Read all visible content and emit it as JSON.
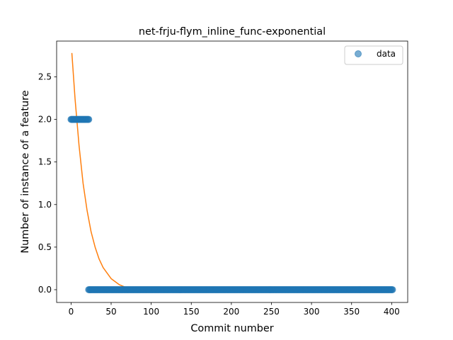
{
  "chart_data": {
    "type": "scatter",
    "title": "net-frju-flym_inline_func-exponential",
    "xlabel": "Commit number",
    "ylabel": "Number of instance of a feature",
    "xlim": [
      -18,
      420
    ],
    "ylim": [
      -0.15,
      2.92
    ],
    "xticks": [
      0,
      50,
      100,
      150,
      200,
      250,
      300,
      350,
      400
    ],
    "xtick_labels": [
      "0",
      "50",
      "100",
      "150",
      "200",
      "250",
      "300",
      "350",
      "400"
    ],
    "yticks": [
      0.0,
      0.5,
      1.0,
      1.5,
      2.0,
      2.5
    ],
    "ytick_labels": [
      "0.0",
      "0.5",
      "1.0",
      "1.5",
      "2.0",
      "2.5"
    ],
    "grid": false,
    "legend": {
      "position": "top-right",
      "entries": [
        "data"
      ]
    },
    "colors": {
      "data": "#1f77b4",
      "fit": "#ff7f0e"
    },
    "series": [
      {
        "name": "data",
        "kind": "scatter",
        "segments": [
          {
            "x_from": 0,
            "x_to": 22,
            "y": 2
          },
          {
            "x_from": 22,
            "x_to": 401,
            "y": 0
          }
        ]
      },
      {
        "kind": "line",
        "x": [
          1,
          5,
          10,
          15,
          20,
          25,
          30,
          35,
          40,
          50,
          60,
          70,
          80,
          90,
          100,
          120,
          150,
          200,
          300,
          401
        ],
        "y": [
          2.78,
          2.24,
          1.69,
          1.25,
          0.93,
          0.68,
          0.5,
          0.36,
          0.26,
          0.13,
          0.06,
          0.02,
          0.0,
          -0.01,
          -0.015,
          -0.02,
          -0.02,
          -0.02,
          -0.02,
          -0.02
        ]
      }
    ]
  }
}
